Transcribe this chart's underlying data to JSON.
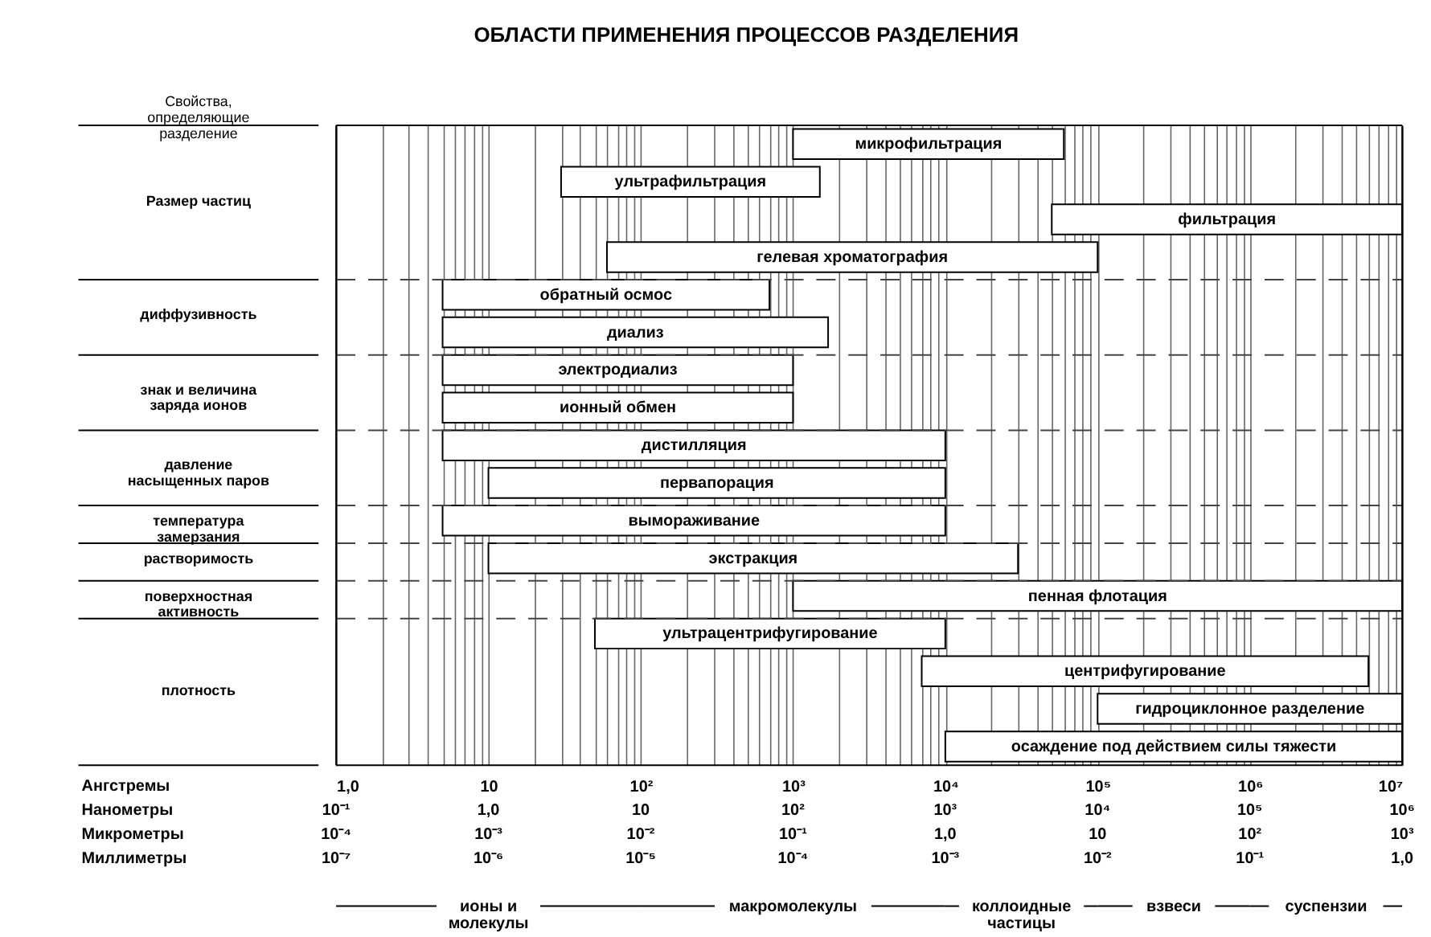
{
  "chart_data": {
    "type": "bar",
    "orientation": "horizontal",
    "title": "ОБЛАСТИ ПРИМЕНЕНИЯ ПРОЦЕССОВ РАЗДЕЛЕНИЯ",
    "log": "x",
    "grid": "x",
    "tick_labels": "x",
    "color": "#ffffff",
    "categories": [
      "микрофильтрация",
      "ультрафильтрация",
      "фильтрация",
      "гелевая хроматография",
      "обратный осмос",
      "диализ",
      "электродиализ",
      "ионный обмен",
      "дистилляция",
      "первапорация",
      "вымораживание",
      "экстракция",
      "пенная флотация",
      "ультрацентрифугирование",
      "центрифугирование",
      "гидроциклонное разделение",
      "осаждение под действием силы тяжести"
    ],
    "base": [
      1000,
      30,
      50000,
      60,
      5,
      5,
      5,
      5,
      5,
      10,
      5,
      10,
      1000,
      50,
      7000,
      100000,
      10000
    ],
    "values": [
      59000,
      1470,
      9950000,
      99940,
      695,
      1695,
      995,
      995,
      9995,
      9990,
      9995,
      29990,
      9999000,
      9950,
      5993000,
      9900000,
      9990000
    ],
    "xlim": [
      1,
      10000000
    ],
    "xticks": [
      {
        "value": 1,
        "label": "1,0"
      },
      {
        "value": 2,
        "label": null
      },
      {
        "value": 3,
        "label": null
      },
      {
        "value": 4,
        "label": null
      },
      {
        "value": 5,
        "label": null
      },
      {
        "value": 6,
        "label": null
      },
      {
        "value": 7,
        "label": null
      },
      {
        "value": 8,
        "label": null
      },
      {
        "value": 9,
        "label": null
      },
      10,
      {
        "value": 20,
        "label": null
      },
      {
        "value": 30,
        "label": null
      },
      {
        "value": 40,
        "label": null
      },
      {
        "value": 50,
        "label": null
      },
      {
        "value": 60,
        "label": null
      },
      {
        "value": 70,
        "label": null
      },
      {
        "value": 80,
        "label": null
      },
      {
        "value": 90,
        "label": null
      },
      {
        "value": 100,
        "label": "10²"
      },
      {
        "value": 200,
        "label": null
      },
      {
        "value": 300,
        "label": null
      },
      {
        "value": 400,
        "label": null
      },
      {
        "value": 500,
        "label": null
      },
      {
        "value": 600,
        "label": null
      },
      {
        "value": 700,
        "label": null
      },
      {
        "value": 800,
        "label": null
      },
      {
        "value": 900,
        "label": null
      },
      {
        "value": 1000,
        "label": "10³"
      },
      {
        "value": 2000,
        "label": null
      },
      {
        "value": 3000,
        "label": null
      },
      {
        "value": 4000,
        "label": null
      },
      {
        "value": 5000,
        "label": null
      },
      {
        "value": 6000,
        "label": null
      },
      {
        "value": 7000,
        "label": null
      },
      {
        "value": 8000,
        "label": null
      },
      {
        "value": 9000,
        "label": null
      },
      {
        "value": 10000,
        "label": "10⁴"
      },
      {
        "value": 20000,
        "label": null
      },
      {
        "value": 30000,
        "label": null
      },
      {
        "value": 40000,
        "label": null
      },
      {
        "value": 50000,
        "label": null
      },
      {
        "value": 60000,
        "label": null
      },
      {
        "value": 70000,
        "label": null
      },
      {
        "value": 80000,
        "label": null
      },
      {
        "value": 90000,
        "label": null
      },
      {
        "value": 100000,
        "label": "10⁵"
      },
      {
        "value": 200000,
        "label": null
      },
      {
        "value": 300000,
        "label": null
      },
      {
        "value": 400000,
        "label": null
      },
      {
        "value": 500000,
        "label": null
      },
      {
        "value": 600000,
        "label": null
      },
      {
        "value": 700000,
        "label": null
      },
      {
        "value": 800000,
        "label": null
      },
      {
        "value": 900000,
        "label": null
      },
      {
        "value": 1000000,
        "label": "10⁶"
      },
      {
        "value": 2000000,
        "label": null
      },
      {
        "value": 3000000,
        "label": null
      },
      {
        "value": 4000000,
        "label": null
      },
      {
        "value": 5000000,
        "label": null
      },
      {
        "value": 6000000,
        "label": null
      },
      {
        "value": 7000000,
        "label": null
      },
      {
        "value": 8000000,
        "label": null
      },
      {
        "value": 9000000,
        "label": null
      },
      {
        "value": 10000000,
        "label": "10⁷"
      }
    ],
    "annotations": [
      "Свойства, определяющие разделение",
      "Размер частиц",
      "диффузивность",
      "знак и величина заряда ионов",
      "давление насыщенных паров",
      "температура замерзания",
      "растворимость",
      "поверхностная активность",
      "плотность",
      "Ангстремы",
      "Нанометры",
      "Микрометры",
      "Миллиметры",
      "10⁻¹",
      "1,0",
      "10",
      "10²",
      "10³",
      "10⁴",
      "10⁵",
      "10⁶",
      "10⁻⁴",
      "10⁻³",
      "10⁻²",
      "10⁻¹",
      "1,0",
      "10",
      "10²",
      "10³",
      "10⁻⁷",
      "10⁻⁶",
      "10⁻⁵",
      "10⁻⁴",
      "10⁻³",
      "10⁻²",
      "10⁻¹",
      "1,0",
      "ионы и молекулы",
      "макромолекулы",
      "коллоидные частицы",
      "взвеси",
      "суспензии"
    ]
  }
}
